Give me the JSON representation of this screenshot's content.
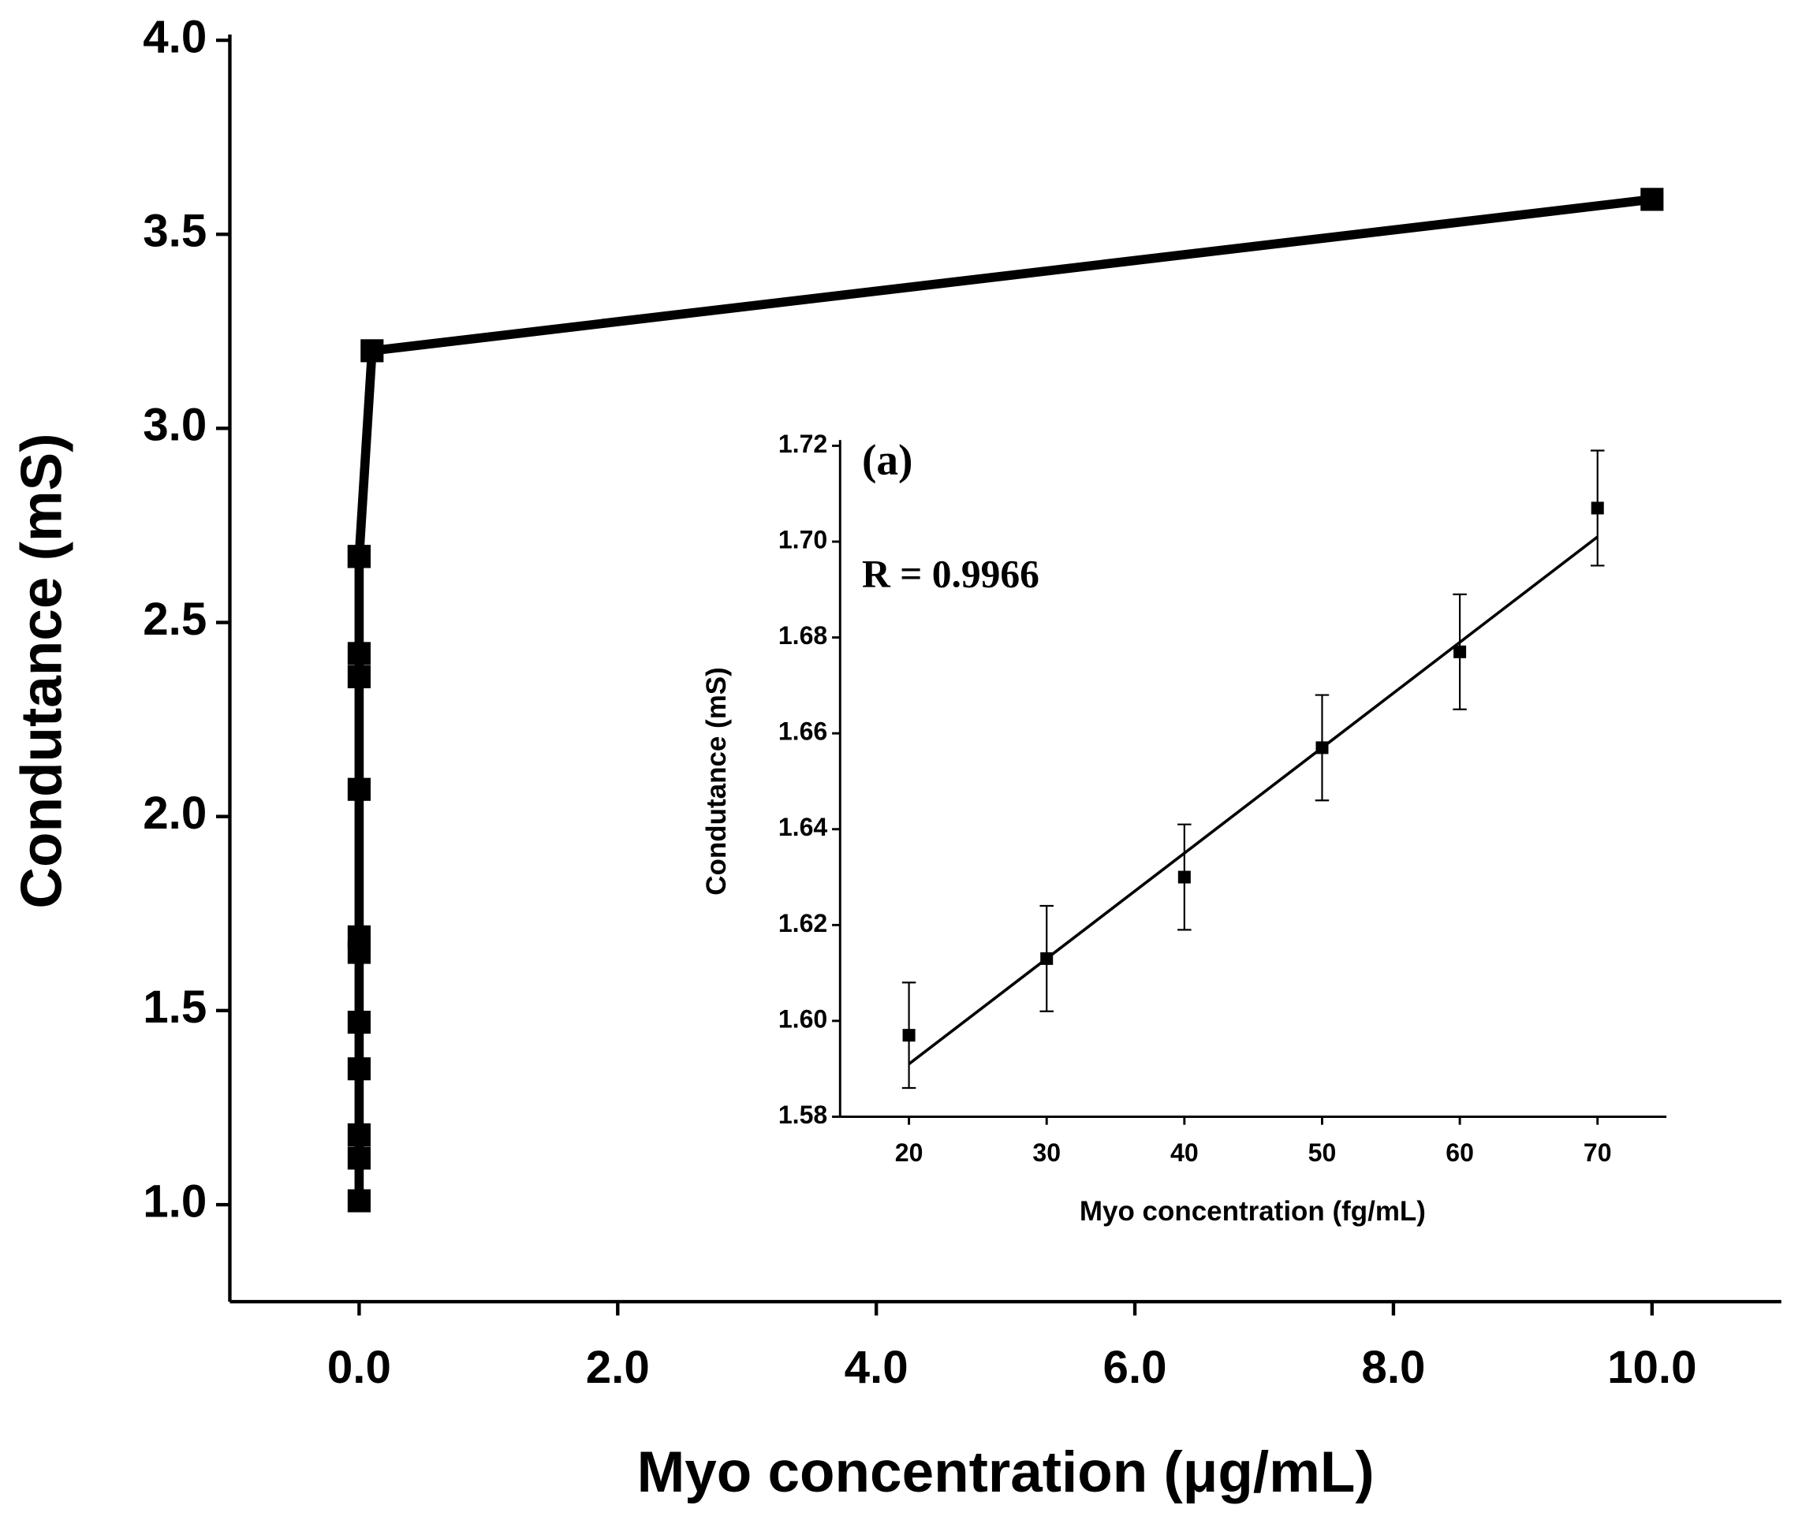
{
  "chart_data": [
    {
      "type": "line",
      "x_label": "Myo concentration (μg/mL)",
      "y_label": "Condutance (mS)",
      "xlim": [
        -1,
        11
      ],
      "ylim": [
        0.75,
        4.0
      ],
      "xticks": [
        {
          "value": 0,
          "label": "0.0"
        },
        {
          "value": 2,
          "label": "2.0"
        },
        {
          "value": 4,
          "label": "4.0"
        },
        {
          "value": 6,
          "label": "6.0"
        },
        {
          "value": 8,
          "label": "8.0"
        },
        {
          "value": 10,
          "label": "10.0"
        }
      ],
      "yticks": [
        {
          "value": 1.0,
          "label": "1.0"
        },
        {
          "value": 1.5,
          "label": "1.5"
        },
        {
          "value": 2.0,
          "label": "2.0"
        },
        {
          "value": 2.5,
          "label": "2.5"
        },
        {
          "value": 3.0,
          "label": "3.0"
        },
        {
          "value": 3.5,
          "label": "3.5"
        },
        {
          "value": 4.0,
          "label": "4.0"
        }
      ],
      "series": [
        {
          "color": "#000000",
          "x": [
            0,
            0,
            0,
            0,
            0,
            0,
            0,
            0,
            0,
            0,
            0,
            0,
            0.1,
            10
          ],
          "values": [
            1.01,
            1.12,
            1.18,
            1.35,
            1.47,
            1.65,
            1.69,
            2.07,
            2.36,
            2.42,
            2.67,
            2.67,
            3.2,
            3.59
          ]
        }
      ]
    },
    {
      "type": "scatter",
      "x_label": "Myo concentration (fg/mL)",
      "y_label": "Condutance (mS)",
      "annotations": [
        "(a)",
        "R = 0.9966"
      ],
      "xlim": [
        15,
        75
      ],
      "ylim": [
        1.58,
        1.72
      ],
      "xticks": [
        20,
        30,
        40,
        50,
        60,
        70
      ],
      "yticks": [
        {
          "value": 1.58,
          "label": "1.58"
        },
        {
          "value": 1.6,
          "label": "1.60"
        },
        {
          "value": 1.62,
          "label": "1.62"
        },
        {
          "value": 1.64,
          "label": "1.64"
        },
        {
          "value": 1.66,
          "label": "1.66"
        },
        {
          "value": 1.68,
          "label": "1.68"
        },
        {
          "value": 1.7,
          "label": "1.70"
        },
        {
          "value": 1.72,
          "label": "1.72"
        }
      ],
      "series": [
        {
          "color": "#000000",
          "x": [
            20,
            30,
            40,
            50,
            60,
            70
          ],
          "values": [
            1.597,
            1.613,
            1.63,
            1.657,
            1.677,
            1.707
          ],
          "errors": [
            0.011,
            0.011,
            0.011,
            0.011,
            0.012,
            0.012
          ]
        }
      ],
      "fit": {
        "x": [
          20,
          70
        ],
        "values": [
          1.591,
          1.701
        ]
      }
    }
  ]
}
